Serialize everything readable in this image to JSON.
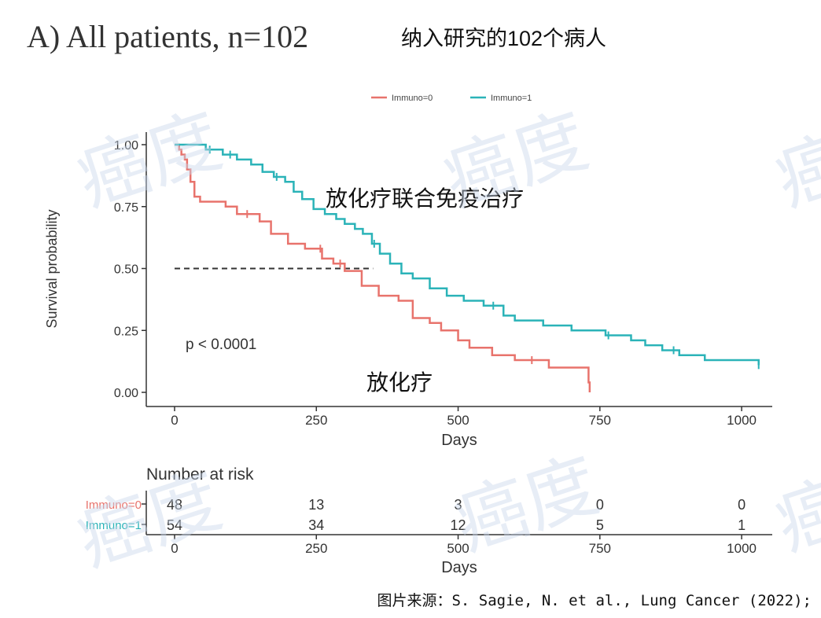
{
  "panel_label": "A) All patients, n=102",
  "panel_label_cn": "纳入研究的102个病人",
  "source_note": "图片来源：S. Sagie, N. et al., Lung Cancer (2022);",
  "watermark_text": "癌度",
  "colors": {
    "immuno0": "#e8736c",
    "immuno1": "#2bb3b8",
    "text": "#333333",
    "median_line": "#333333"
  },
  "chart_data": {
    "type": "line",
    "subtype": "kaplan-meier",
    "xlabel": "Days",
    "ylabel": "Survival probability",
    "xlim": [
      0,
      1050
    ],
    "ylim": [
      0,
      1
    ],
    "x_ticks": [
      "0",
      "250",
      "500",
      "750",
      "1000"
    ],
    "y_ticks": [
      "0.00",
      "0.25",
      "0.50",
      "0.75",
      "1.00"
    ],
    "legend_position": "top",
    "grid": false,
    "median_line_y": 0.5,
    "median_line_x_end": 350,
    "p_value_label": "p < 0.0001",
    "annotation_immuno1": "放化疗联合免疫治疗",
    "annotation_immuno0": "放化疗",
    "series": [
      {
        "name": "Immuno=0",
        "color_key": "immuno0",
        "steps": [
          [
            0,
            1.0
          ],
          [
            8,
            0.98
          ],
          [
            12,
            0.96
          ],
          [
            18,
            0.94
          ],
          [
            22,
            0.9
          ],
          [
            28,
            0.85
          ],
          [
            35,
            0.79
          ],
          [
            45,
            0.77
          ],
          [
            90,
            0.75
          ],
          [
            110,
            0.72
          ],
          [
            150,
            0.69
          ],
          [
            170,
            0.64
          ],
          [
            200,
            0.6
          ],
          [
            230,
            0.58
          ],
          [
            260,
            0.54
          ],
          [
            280,
            0.52
          ],
          [
            300,
            0.49
          ],
          [
            330,
            0.43
          ],
          [
            360,
            0.39
          ],
          [
            395,
            0.37
          ],
          [
            420,
            0.3
          ],
          [
            450,
            0.28
          ],
          [
            470,
            0.25
          ],
          [
            500,
            0.21
          ],
          [
            520,
            0.18
          ],
          [
            560,
            0.15
          ],
          [
            600,
            0.13
          ],
          [
            660,
            0.1
          ],
          [
            730,
            0.04
          ],
          [
            732,
            0.0
          ]
        ],
        "censor_x": [
          128,
          257,
          292,
          630
        ]
      },
      {
        "name": "Immuno=1",
        "color_key": "immuno1",
        "steps": [
          [
            0,
            1.0
          ],
          [
            25,
            1.0
          ],
          [
            55,
            0.98
          ],
          [
            85,
            0.96
          ],
          [
            110,
            0.94
          ],
          [
            135,
            0.92
          ],
          [
            155,
            0.89
          ],
          [
            175,
            0.87
          ],
          [
            195,
            0.85
          ],
          [
            210,
            0.81
          ],
          [
            225,
            0.78
          ],
          [
            245,
            0.74
          ],
          [
            265,
            0.72
          ],
          [
            285,
            0.7
          ],
          [
            300,
            0.68
          ],
          [
            318,
            0.66
          ],
          [
            332,
            0.64
          ],
          [
            348,
            0.6
          ],
          [
            362,
            0.56
          ],
          [
            380,
            0.52
          ],
          [
            400,
            0.48
          ],
          [
            420,
            0.46
          ],
          [
            450,
            0.42
          ],
          [
            480,
            0.39
          ],
          [
            510,
            0.37
          ],
          [
            545,
            0.35
          ],
          [
            580,
            0.31
          ],
          [
            600,
            0.29
          ],
          [
            650,
            0.27
          ],
          [
            700,
            0.25
          ],
          [
            760,
            0.23
          ],
          [
            805,
            0.21
          ],
          [
            830,
            0.19
          ],
          [
            860,
            0.17
          ],
          [
            890,
            0.15
          ],
          [
            935,
            0.13
          ],
          [
            1030,
            0.11
          ]
        ],
        "censor_x": [
          62,
          98,
          180,
          352,
          562,
          765,
          880,
          1030
        ]
      }
    ],
    "risk_table": {
      "title": "Number at risk",
      "x_ticks": [
        "0",
        "250",
        "500",
        "750",
        "1000"
      ],
      "xlabel": "Days",
      "rows": [
        {
          "label": "Immuno=0",
          "color_key": "immuno0",
          "counts": [
            "48",
            "13",
            "3",
            "0",
            "0"
          ]
        },
        {
          "label": "Immuno=1",
          "color_key": "immuno1",
          "counts": [
            "54",
            "34",
            "12",
            "5",
            "1"
          ]
        }
      ]
    }
  }
}
